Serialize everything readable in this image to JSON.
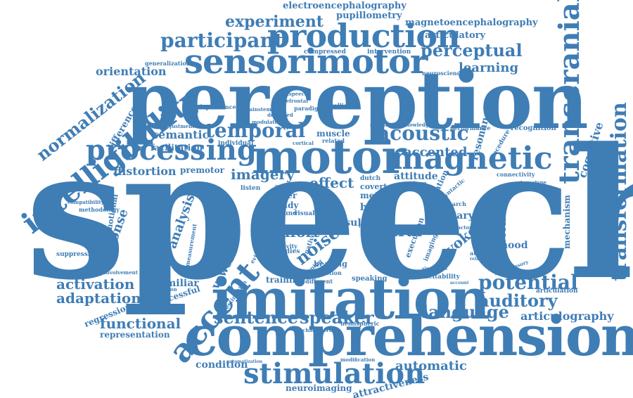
{
  "colors": {
    "word": "#3f7db5",
    "background": "#ffffff"
  },
  "words": {
    "speech": "speech",
    "perception": "perception",
    "motor": "motor",
    "imitation": "imitation",
    "comprehension": "comprehension",
    "sensorimotor": "sensorimotor",
    "production": "production",
    "intelligibility": "intelligibility",
    "processing": "processing",
    "transcranial": "transcranial",
    "transformation": "transformation",
    "stimulation": "stimulation",
    "magnetic": "magnetic",
    "temporal": "temporal",
    "acoustic": "acoustic",
    "accent": "accent",
    "participant": "participant",
    "experiment": "experiment",
    "perceptual": "perceptual",
    "potential": "potential",
    "auditory": "auditory",
    "language": "language",
    "sentence": "sentence",
    "speaker": "speaker",
    "activation": "activation",
    "adaptation": "adaptation",
    "functional": "functional",
    "representation": "representation",
    "automatic": "automatic",
    "normalization": "normalization",
    "electroencephalography": "electroencephalography",
    "pupillometry": "pupillometry",
    "magnetoencephalography": "magnetoencephalography",
    "articulatory": "articulatory",
    "learning": "learning",
    "orientation": "orientation",
    "response": "response",
    "semantic": "semantic",
    "facilitation": "facilitation",
    "distortion": "distortion",
    "premotor": "premotor",
    "imagery": "imagery",
    "effect": "effect",
    "accented": "accented",
    "noise": "noise",
    "neural": "neural",
    "evoked": "evoked",
    "listening": "listening",
    "vowel": "vowel",
    "analysis": "analysis",
    "effort": "effort",
    "articulography": "articulography",
    "regression": "regression",
    "condition": "condition",
    "neuroimaging": "neuroimaging",
    "attractiveness": "attractiveness",
    "unfamiliar": "unfamiliar",
    "successful": "successful",
    "training": "training",
    "cognitive": "cognitive",
    "mechanism": "mechanism",
    "difference": "difference",
    "emotional": "emotional",
    "suppression": "suppression",
    "likelihood": "likelihood",
    "primary": "primary",
    "resonance": "resonance",
    "attitude": "attitude",
    "generalization": "generalization",
    "compressed": "compressed",
    "intervention": "intervention",
    "neuroscience": "neuroscience",
    "recognition": "recognition",
    "performance": "performance",
    "dependence": "dependence",
    "individual": "individual",
    "muscle": "muscle",
    "brain": "brain",
    "result": "result",
    "time": "time",
    "role": "role",
    "study": "study",
    "talker": "talker",
    "meta": "meta",
    "covert": "covert",
    "dutch": "dutch",
    "english": "english",
    "hearing": "hearing",
    "speaking": "speaking",
    "excitability": "excitability",
    "articulation": "articulation",
    "multisensory": "multisensory",
    "audiovisual": "audiovisual",
    "stereotype": "stereotype",
    "connectivity": "connectivity",
    "musicianship": "musicianship",
    "methodology": "methodology",
    "compatibility": "compatibility",
    "involvement": "involvement",
    "acquisition": "acquisition",
    "estimation": "estimation",
    "measurement": "measurement",
    "challenging": "challenging",
    "modulate": "modulate",
    "degraded": "degraded",
    "brainstem": "brainstem",
    "paradigm": "paradigm",
    "intelligible": "intelligible",
    "prefrontal": "prefrontal",
    "nonspeech": "nonspeech",
    "standard": "standard",
    "knowledge": "knowledge",
    "procedure": "procedure",
    "variation": "variation",
    "system": "system",
    "research": "research",
    "syntactic": "syntactic",
    "distractor": "distractor",
    "execution": "execution",
    "imaging": "imaging",
    "studies": "studies",
    "activity": "activity",
    "different": "different",
    "related": "related",
    "cortical": "cortical",
    "visual": "visual",
    "sound": "sound",
    "listen": "listen",
    "action": "action",
    "native": "native",
    "function": "function",
    "mapping": "mapping",
    "evidence": "evidence",
    "characteristic": "characteristic",
    "hemispheric": "hemispheric",
    "modification": "modification",
    "automatization": "automatization",
    "adjustment": "adjustment",
    "simulation": "simulation",
    "control": "control",
    "current": "current",
    "account": "account",
    "relationship": "relationship"
  }
}
